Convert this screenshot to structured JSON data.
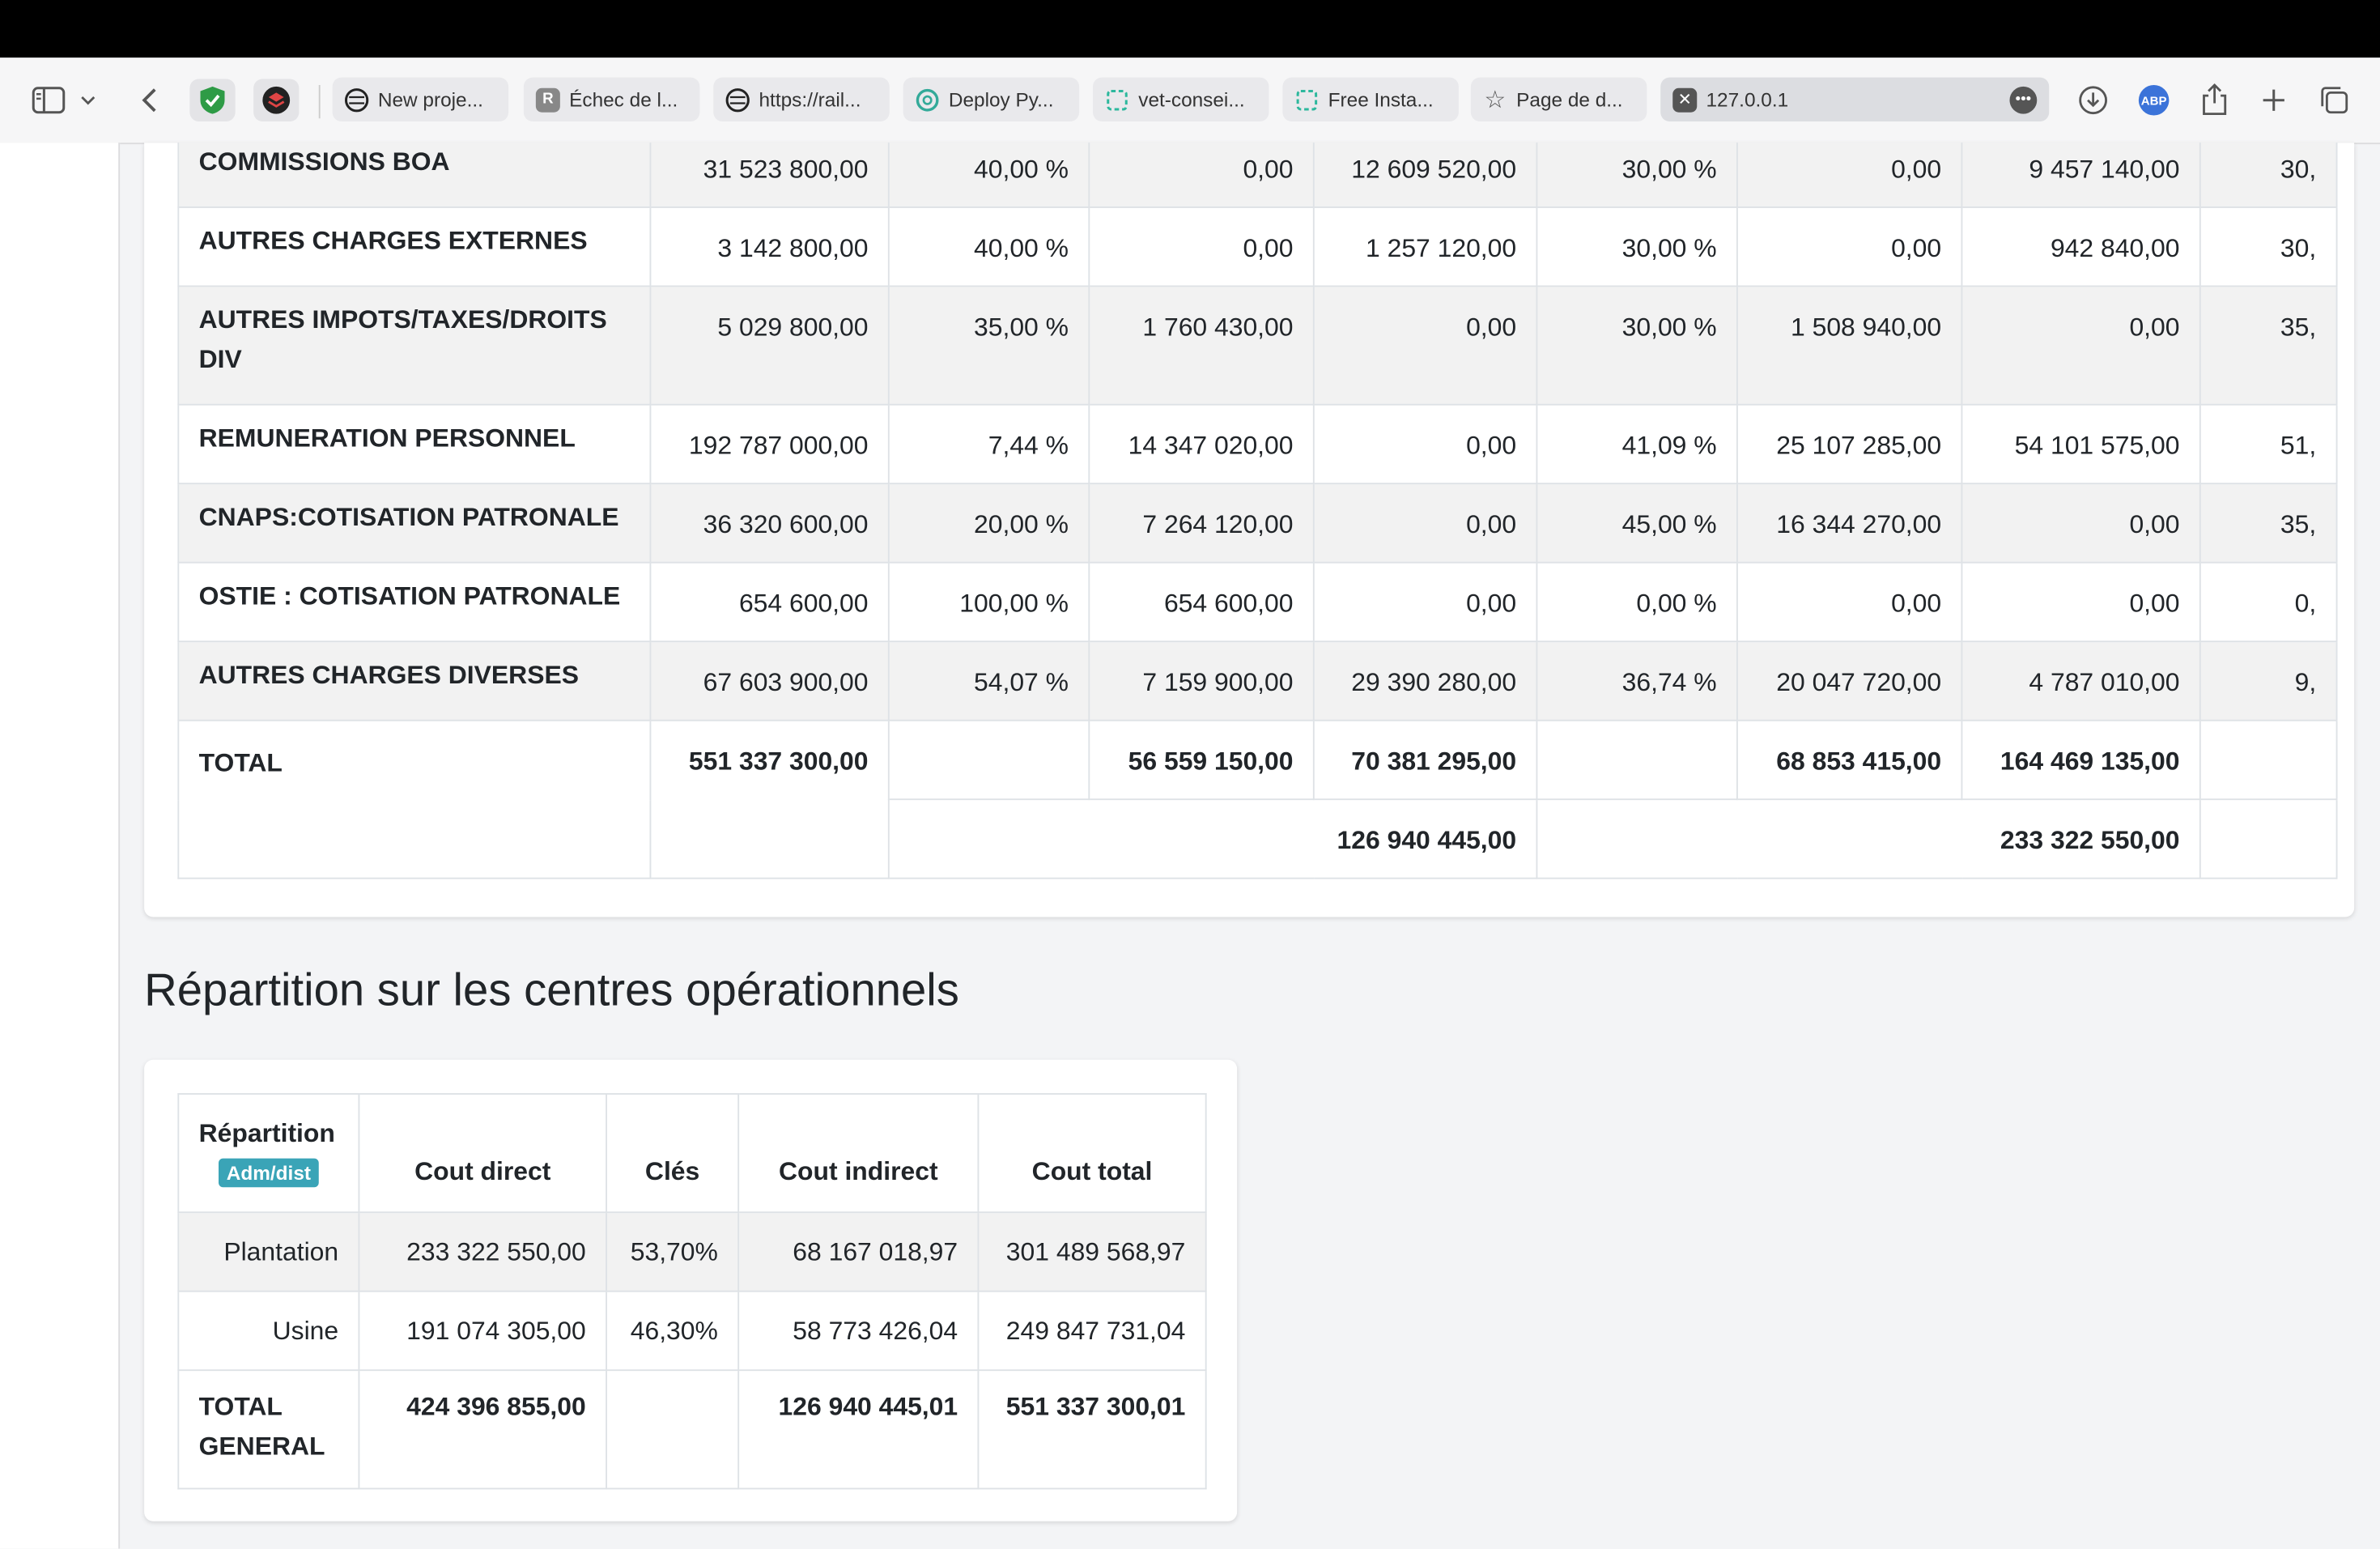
{
  "browser": {
    "tabs": [
      {
        "title": "New proje...",
        "icon": "globe-icon"
      },
      {
        "title": "Échec de l...",
        "icon": "r-letter-icon"
      },
      {
        "title": "https://rail...",
        "icon": "globe-icon"
      },
      {
        "title": "Deploy Py...",
        "icon": "openai-icon"
      },
      {
        "title": "vet-consei...",
        "icon": "bracket-icon"
      },
      {
        "title": "Free Insta...",
        "icon": "bracket-icon"
      },
      {
        "title": "Page de d...",
        "icon": "star-icon"
      },
      {
        "title": "127.0.0.1",
        "icon": "close-square-icon",
        "active": true
      }
    ],
    "abp_label": "ABP"
  },
  "charges_table": {
    "rows": [
      {
        "label": "COMMISSIONS BOA",
        "cells": [
          "31 523 800,00",
          "40,00 %",
          "0,00",
          "12 609 520,00",
          "30,00 %",
          "0,00",
          "9 457 140,00",
          "30,"
        ]
      },
      {
        "label": "AUTRES CHARGES EXTERNES",
        "cells": [
          "3 142 800,00",
          "40,00 %",
          "0,00",
          "1 257 120,00",
          "30,00 %",
          "0,00",
          "942 840,00",
          "30,"
        ]
      },
      {
        "label": "AUTRES IMPOTS/TAXES/DROITS DIV",
        "cells": [
          "5 029 800,00",
          "35,00 %",
          "1 760 430,00",
          "0,00",
          "30,00 %",
          "1 508 940,00",
          "0,00",
          "35,"
        ]
      },
      {
        "label": "REMUNERATION PERSONNEL",
        "cells": [
          "192 787 000,00",
          "7,44 %",
          "14 347 020,00",
          "0,00",
          "41,09 %",
          "25 107 285,00",
          "54 101 575,00",
          "51,"
        ]
      },
      {
        "label": "CNAPS:COTISATION PATRONALE",
        "cells": [
          "36 320 600,00",
          "20,00 %",
          "7 264 120,00",
          "0,00",
          "45,00 %",
          "16 344 270,00",
          "0,00",
          "35,"
        ]
      },
      {
        "label": "OSTIE : COTISATION PATRONALE",
        "cells": [
          "654 600,00",
          "100,00 %",
          "654 600,00",
          "0,00",
          "0,00 %",
          "0,00",
          "0,00",
          "0,"
        ]
      },
      {
        "label": "AUTRES CHARGES DIVERSES",
        "cells": [
          "67 603 900,00",
          "54,07 %",
          "7 159 900,00",
          "29 390 280,00",
          "36,74 %",
          "20 047 720,00",
          "4 787 010,00",
          "9,"
        ]
      }
    ],
    "total": {
      "label": "TOTAL",
      "cells": [
        "551 337 300,00",
        "",
        "56 559 150,00",
        "70 381 295,00",
        "",
        "68 853 415,00",
        "164 469 135,00",
        ""
      ],
      "subtotal_1": "126 940 445,00",
      "subtotal_2": "233 322 550,00"
    }
  },
  "repartition": {
    "heading": "Répartition sur les centres opérationnels",
    "headers": {
      "repartition": "Répartition",
      "badge": "Adm/dist",
      "cout_direct": "Cout direct",
      "cles": "Clés",
      "cout_indirect": "Cout indirect",
      "cout_total": "Cout total"
    },
    "rows": [
      {
        "label": "Plantation",
        "cout_direct": "233 322 550,00",
        "cles": "53,70%",
        "cout_indirect": "68 167 018,97",
        "cout_total": "301 489 568,97"
      },
      {
        "label": "Usine",
        "cout_direct": "191 074 305,00",
        "cles": "46,30%",
        "cout_indirect": "58 773 426,04",
        "cout_total": "249 847 731,04"
      }
    ],
    "total": {
      "label": "TOTAL GENERAL",
      "cout_direct": "424 396 855,00",
      "cles": "",
      "cout_indirect": "126 940 445,01",
      "cout_total": "551 337 300,01"
    }
  }
}
